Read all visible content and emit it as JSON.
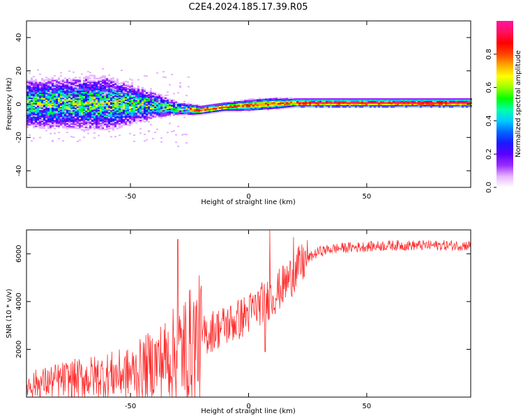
{
  "figure_title": "C2E4.2024.185.17.39.R05",
  "chart_data": [
    {
      "type": "heatmap",
      "xlabel": "Height of straight line (km)",
      "ylabel": "Frequency (Hz)",
      "xlim": [
        -94,
        94
      ],
      "ylim": [
        -50,
        50
      ],
      "x_ticks": [
        -50,
        0,
        50
      ],
      "y_ticks": [
        -40,
        -20,
        0,
        20,
        40
      ],
      "colorbar": {
        "label": "Normalized spectral amplitude",
        "range": [
          0,
          1
        ],
        "ticks": [
          "0.0",
          "0.2",
          "0.4",
          "0.6",
          "0.8"
        ],
        "colors": [
          "#ffffff",
          "#e6b3ff",
          "#9b2cff",
          "#5a00ff",
          "#1a1aff",
          "#0066ff",
          "#00ccff",
          "#00ffaa",
          "#00ff00",
          "#99ff00",
          "#ffff00",
          "#ffaa00",
          "#ff4400",
          "#ff0000",
          "#ff1060",
          "#ff14a0"
        ]
      },
      "grid": false,
      "trend": [
        {
          "x": -94,
          "center": 0,
          "spread": 9
        },
        {
          "x": -60,
          "center": 0,
          "spread": 10
        },
        {
          "x": -40,
          "center": -1,
          "spread": 5
        },
        {
          "x": -30,
          "center": -3,
          "spread": 2.5
        },
        {
          "x": -20,
          "center": -4,
          "spread": 1.5
        },
        {
          "x": -10,
          "center": -2,
          "spread": 1.5
        },
        {
          "x": 0,
          "center": -1,
          "spread": 2
        },
        {
          "x": 10,
          "center": 0,
          "spread": 2
        },
        {
          "x": 20,
          "center": 0.5,
          "spread": 1.5
        },
        {
          "x": 94,
          "center": 0.5,
          "spread": 1.5
        }
      ]
    },
    {
      "type": "line",
      "xlabel": "Height of straight line (km)",
      "ylabel": "SNR (10 * v/v)",
      "xlim": [
        -94,
        94
      ],
      "ylim": [
        0,
        7000
      ],
      "x_ticks": [
        -50,
        0,
        50
      ],
      "y_ticks": [
        2000,
        4000,
        6000
      ],
      "line_color": "#ff2a2a",
      "grid": false,
      "series": [
        {
          "x": [
            -94,
            -80,
            -70,
            -60,
            -50,
            -40,
            -35,
            -30,
            -25,
            -20,
            -15,
            -10,
            -5,
            0,
            5,
            10,
            15,
            20,
            25,
            30,
            35,
            40,
            50,
            60,
            70,
            80,
            94
          ],
          "values": [
            500,
            700,
            800,
            900,
            1000,
            1400,
            1600,
            1900,
            2200,
            2500,
            2800,
            3000,
            3200,
            3500,
            3900,
            4200,
            4700,
            5300,
            5800,
            6100,
            6200,
            6250,
            6300,
            6350,
            6350,
            6350,
            6350
          ],
          "spikes": [
            {
              "x": -30,
              "value": 6600
            },
            {
              "x": 9,
              "value": 7000
            },
            {
              "x": 19,
              "value": 6700
            },
            {
              "x": 7,
              "value": 1900
            },
            {
              "x": -27,
              "value": 300
            }
          ]
        }
      ]
    }
  ]
}
